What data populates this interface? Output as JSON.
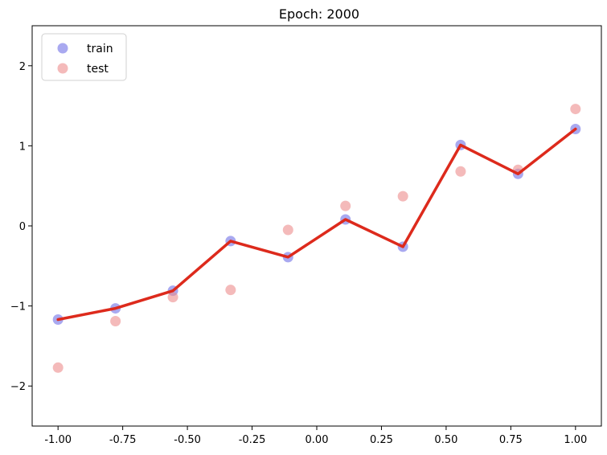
{
  "chart_data": {
    "type": "scatter",
    "title": "Epoch: 2000",
    "xlabel": "",
    "ylabel": "",
    "xlim": [
      -1.1,
      1.1
    ],
    "ylim": [
      -2.5,
      2.5
    ],
    "xticks": [
      "-1.00",
      "-0.75",
      "-0.50",
      "-0.25",
      "0.00",
      "0.25",
      "0.50",
      "0.75",
      "1.00"
    ],
    "xtick_values": [
      -1.0,
      -0.75,
      -0.5,
      -0.25,
      0.0,
      0.25,
      0.5,
      0.75,
      1.0
    ],
    "yticks": [
      "−2",
      "−1",
      "0",
      "1",
      "2"
    ],
    "ytick_values": [
      -2,
      -1,
      0,
      1,
      2
    ],
    "grid": false,
    "legend": {
      "placement": "top-left",
      "entries": [
        "train",
        "test"
      ]
    },
    "series": [
      {
        "name": "train",
        "kind": "scatter",
        "color": "#6f6fe6",
        "x": [
          -1.0,
          -0.778,
          -0.556,
          -0.333,
          -0.111,
          0.111,
          0.333,
          0.556,
          0.778,
          1.0
        ],
        "y": [
          -1.17,
          -1.03,
          -0.81,
          -0.19,
          -0.39,
          0.08,
          -0.26,
          1.01,
          0.65,
          1.21
        ]
      },
      {
        "name": "test",
        "kind": "scatter",
        "color": "#ec8c8c",
        "x": [
          -1.0,
          -0.778,
          -0.556,
          -0.333,
          -0.111,
          0.111,
          0.333,
          0.556,
          0.778,
          1.0
        ],
        "y": [
          -1.77,
          -1.19,
          -0.89,
          -0.8,
          -0.05,
          0.25,
          0.37,
          0.68,
          0.7,
          1.46
        ]
      },
      {
        "kind": "line",
        "color": "#dd2a1c",
        "x": [
          -1.0,
          -0.778,
          -0.556,
          -0.333,
          -0.111,
          0.111,
          0.333,
          0.556,
          0.778,
          1.0
        ],
        "y": [
          -1.17,
          -1.03,
          -0.81,
          -0.19,
          -0.39,
          0.08,
          -0.26,
          1.01,
          0.65,
          1.21
        ]
      }
    ]
  }
}
